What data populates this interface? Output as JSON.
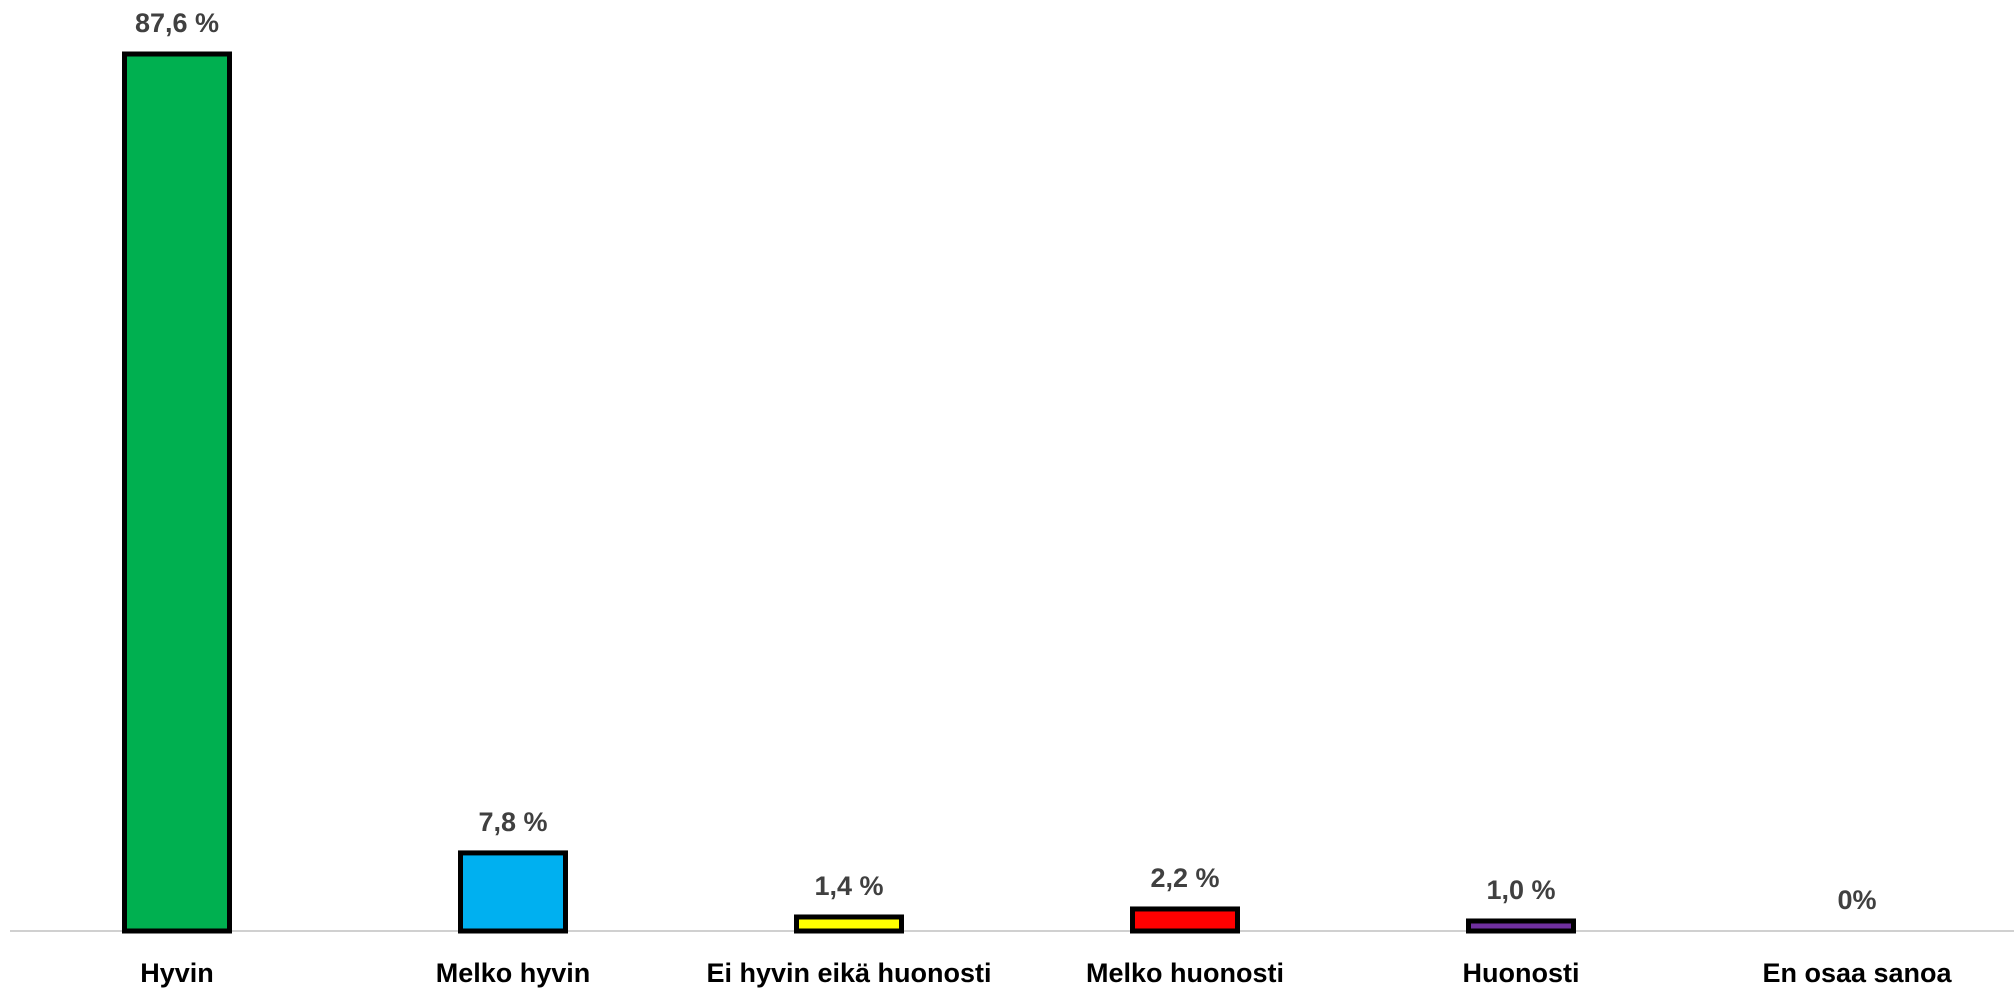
{
  "chart_data": {
    "type": "bar",
    "categories": [
      "Hyvin",
      "Melko hyvin",
      "Ei hyvin eikä huonosti",
      "Melko huonosti",
      "Huonosti",
      "En osaa sanoa"
    ],
    "values": [
      87.6,
      7.8,
      1.4,
      2.2,
      1.0,
      0
    ],
    "data_labels": [
      "87,6 %",
      "7,8 %",
      "1,4 %",
      "2,2 %",
      "1,0 %",
      "0%"
    ],
    "colors": [
      "#00B050",
      "#00B0F0",
      "#FFFF00",
      "#FF0000",
      "#7030A0",
      "#FFFFFF"
    ],
    "ylim": [
      0,
      88
    ],
    "grid": false,
    "legend": false
  }
}
